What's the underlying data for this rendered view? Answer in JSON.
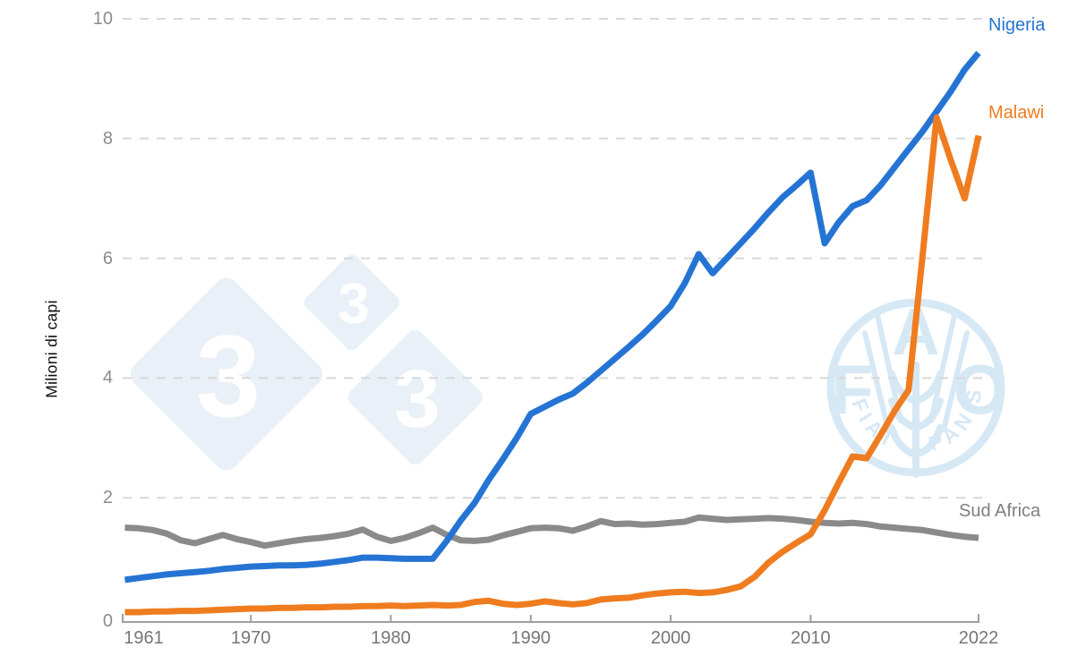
{
  "chart_data": {
    "type": "line",
    "title": "",
    "ylabel": "Milioni di capi",
    "xlabel": "",
    "x_start": 1961,
    "x_step": 1,
    "x_range": [
      1961,
      2022
    ],
    "ylim": [
      0,
      10
    ],
    "x_ticks": [
      1961,
      1970,
      1980,
      1990,
      2000,
      2010,
      2022
    ],
    "y_ticks": [
      0,
      2,
      4,
      6,
      8,
      10
    ],
    "grid": "horizontal-dashed",
    "legend_position": "end-of-line-labels",
    "series": [
      {
        "name": "Nigeria",
        "color": "#2574d4",
        "values": [
          0.63,
          0.66,
          0.69,
          0.72,
          0.74,
          0.76,
          0.78,
          0.81,
          0.83,
          0.85,
          0.86,
          0.87,
          0.87,
          0.88,
          0.9,
          0.93,
          0.96,
          1.0,
          1.0,
          0.99,
          0.98,
          0.98,
          0.98,
          1.28,
          1.62,
          1.92,
          2.3,
          2.64,
          3.0,
          3.4,
          3.52,
          3.64,
          3.74,
          3.92,
          4.12,
          4.32,
          4.52,
          4.73,
          4.96,
          5.2,
          5.58,
          6.07,
          5.75,
          6.0,
          6.25,
          6.5,
          6.77,
          7.02,
          7.22,
          7.43,
          6.25,
          6.6,
          6.87,
          6.97,
          7.22,
          7.52,
          7.82,
          8.12,
          8.45,
          8.78,
          9.15,
          9.43
        ]
      },
      {
        "name": "Malawi",
        "color": "#ef7c1f",
        "values": [
          0.09,
          0.09,
          0.1,
          0.1,
          0.11,
          0.11,
          0.12,
          0.13,
          0.14,
          0.15,
          0.15,
          0.16,
          0.16,
          0.17,
          0.17,
          0.18,
          0.18,
          0.19,
          0.19,
          0.2,
          0.19,
          0.2,
          0.21,
          0.2,
          0.21,
          0.26,
          0.28,
          0.23,
          0.21,
          0.23,
          0.27,
          0.24,
          0.22,
          0.24,
          0.3,
          0.32,
          0.33,
          0.37,
          0.4,
          0.42,
          0.43,
          0.41,
          0.42,
          0.46,
          0.52,
          0.68,
          0.92,
          1.1,
          1.25,
          1.39,
          1.79,
          2.25,
          2.69,
          2.66,
          3.05,
          3.45,
          3.8,
          6.05,
          8.35,
          7.65,
          7.0,
          8.05
        ]
      },
      {
        "name": "Sud Africa",
        "color": "#8a8a8a",
        "values": [
          1.5,
          1.49,
          1.46,
          1.4,
          1.29,
          1.24,
          1.31,
          1.38,
          1.31,
          1.26,
          1.2,
          1.24,
          1.28,
          1.31,
          1.33,
          1.36,
          1.4,
          1.47,
          1.35,
          1.28,
          1.33,
          1.41,
          1.5,
          1.38,
          1.29,
          1.28,
          1.3,
          1.37,
          1.43,
          1.49,
          1.5,
          1.49,
          1.45,
          1.52,
          1.61,
          1.56,
          1.57,
          1.55,
          1.56,
          1.58,
          1.6,
          1.67,
          1.65,
          1.63,
          1.64,
          1.65,
          1.66,
          1.65,
          1.63,
          1.6,
          1.58,
          1.57,
          1.58,
          1.56,
          1.52,
          1.5,
          1.48,
          1.46,
          1.42,
          1.38,
          1.35,
          1.33
        ]
      }
    ]
  },
  "watermarks": {
    "pig333": {
      "digits": [
        "3",
        "3",
        "3"
      ]
    },
    "fao": {
      "letter_f": "F",
      "letter_a": "A",
      "letter_o": "O",
      "motto_left": "FIAT",
      "motto_right": "PANIS"
    }
  },
  "colors": {
    "nigeria": "#2574d4",
    "malawi": "#ef7c1f",
    "sud_africa": "#8a8a8a",
    "grid": "#d8d8d8",
    "axis": "#9e9e9e",
    "y_tick_label": "#8c8c8c",
    "x_tick_label": "#767676",
    "watermark_diamond": "#e9f0f7",
    "watermark_fao": "#d7e8f5"
  }
}
